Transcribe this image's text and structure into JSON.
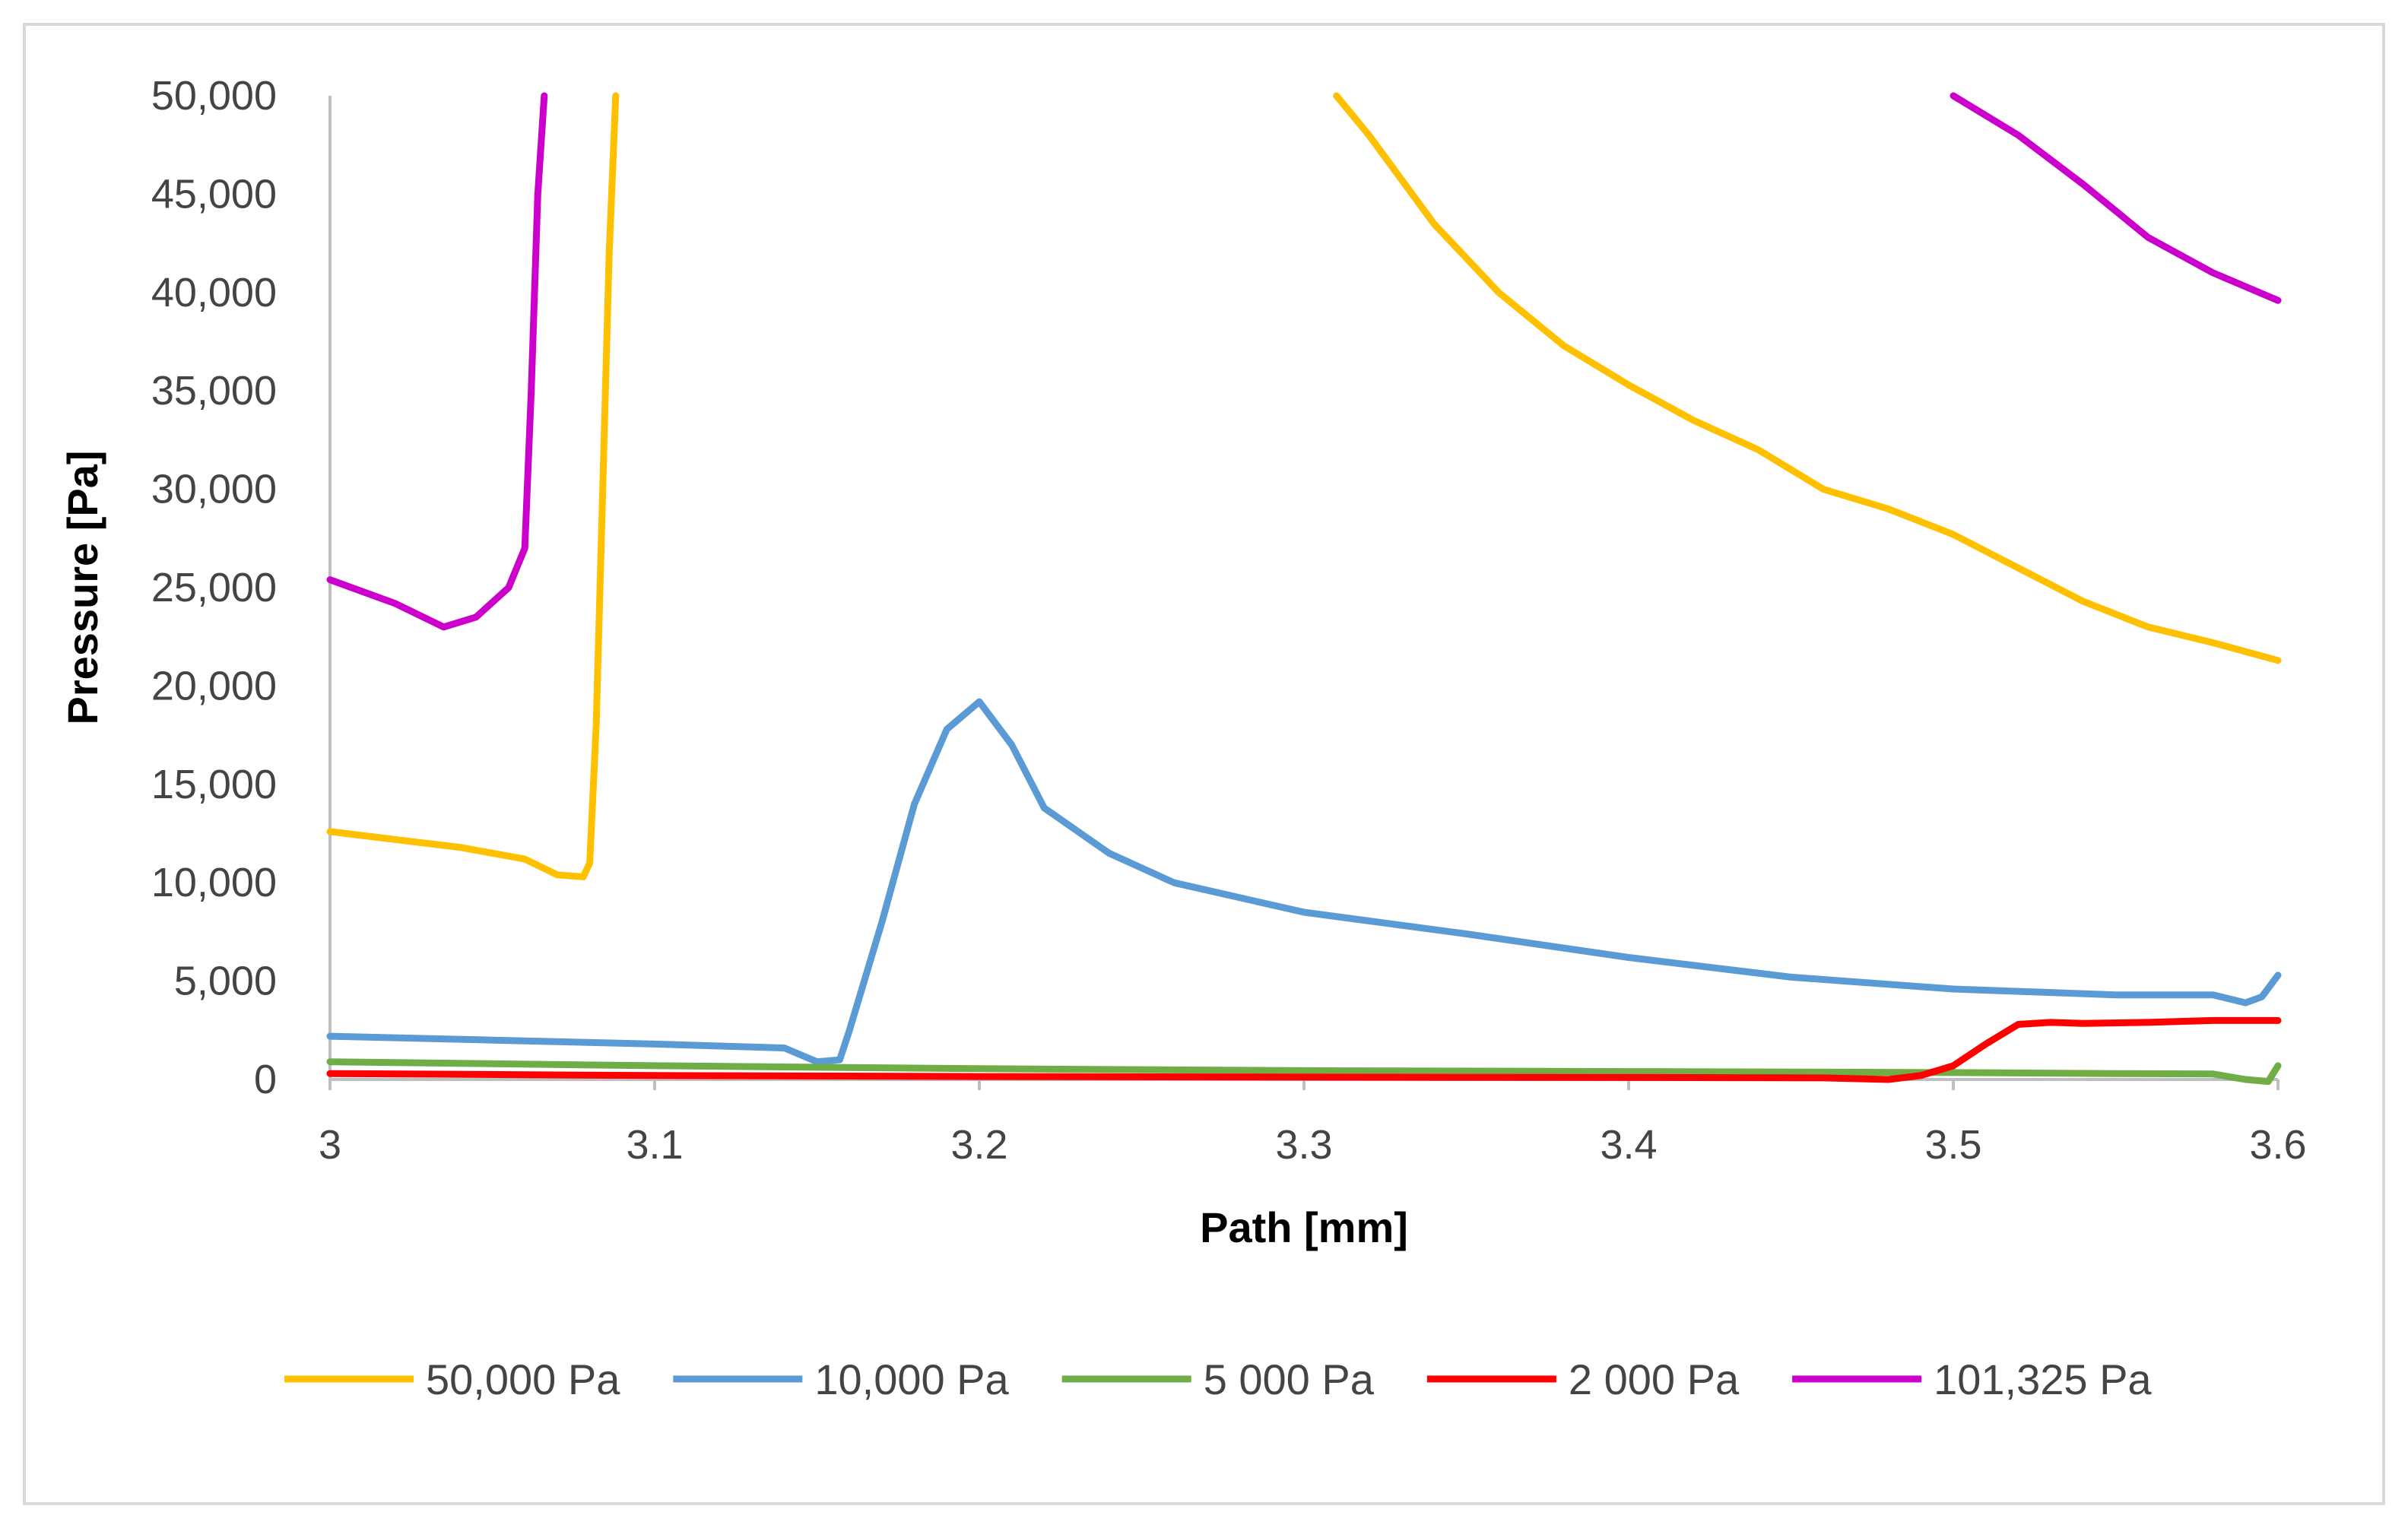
{
  "chart_data": {
    "type": "line",
    "title": "",
    "xlabel": "Path [mm]",
    "ylabel": "Pressure [Pa]",
    "xlim": [
      3,
      3.6
    ],
    "ylim": [
      0,
      50000
    ],
    "grid": false,
    "legend_position": "bottom",
    "x_ticks": [
      {
        "value": 3,
        "label": "3"
      },
      {
        "value": 3.1,
        "label": "3.1"
      },
      {
        "value": 3.2,
        "label": "3.2"
      },
      {
        "value": 3.3,
        "label": "3.3"
      },
      {
        "value": 3.4,
        "label": "3.4"
      },
      {
        "value": 3.5,
        "label": "3.5"
      },
      {
        "value": 3.6,
        "label": "3.6"
      }
    ],
    "y_ticks": [
      {
        "value": 0,
        "label": "0"
      },
      {
        "value": 5000,
        "label": "5,000"
      },
      {
        "value": 10000,
        "label": "10,000"
      },
      {
        "value": 15000,
        "label": "15,000"
      },
      {
        "value": 20000,
        "label": "20,000"
      },
      {
        "value": 25000,
        "label": "25,000"
      },
      {
        "value": 30000,
        "label": "30,000"
      },
      {
        "value": 35000,
        "label": "35,000"
      },
      {
        "value": 40000,
        "label": "40,000"
      },
      {
        "value": 45000,
        "label": "45,000"
      },
      {
        "value": 50000,
        "label": "50,000"
      }
    ],
    "series": [
      {
        "name": "50,000 Pa",
        "color": "#FFC000",
        "segments": [
          [
            [
              3.0,
              12600
            ],
            [
              3.02,
              12200
            ],
            [
              3.04,
              11800
            ],
            [
              3.06,
              11200
            ],
            [
              3.07,
              10400
            ],
            [
              3.078,
              10300
            ],
            [
              3.08,
              11000
            ],
            [
              3.082,
              18000
            ],
            [
              3.084,
              30000
            ],
            [
              3.086,
              42000
            ],
            [
              3.088,
              50000
            ]
          ],
          [
            [
              3.31,
              50000
            ],
            [
              3.32,
              48000
            ],
            [
              3.34,
              43500
            ],
            [
              3.36,
              40000
            ],
            [
              3.38,
              37300
            ],
            [
              3.4,
              35300
            ],
            [
              3.42,
              33500
            ],
            [
              3.44,
              32000
            ],
            [
              3.46,
              30000
            ],
            [
              3.48,
              29000
            ],
            [
              3.5,
              27700
            ],
            [
              3.52,
              26000
            ],
            [
              3.54,
              24300
            ],
            [
              3.56,
              23000
            ],
            [
              3.58,
              22200
            ],
            [
              3.6,
              21300
            ]
          ]
        ]
      },
      {
        "name": "10,000 Pa",
        "color": "#5B9BD5",
        "segments": [
          [
            [
              3.0,
              2200
            ],
            [
              3.05,
              2000
            ],
            [
              3.1,
              1800
            ],
            [
              3.14,
              1600
            ],
            [
              3.15,
              900
            ],
            [
              3.157,
              1000
            ],
            [
              3.16,
              2500
            ],
            [
              3.17,
              8000
            ],
            [
              3.18,
              14000
            ],
            [
              3.19,
              17800
            ],
            [
              3.2,
              19200
            ],
            [
              3.21,
              17000
            ],
            [
              3.22,
              13800
            ],
            [
              3.24,
              11500
            ],
            [
              3.26,
              10000
            ],
            [
              3.3,
              8500
            ],
            [
              3.35,
              7400
            ],
            [
              3.4,
              6200
            ],
            [
              3.45,
              5200
            ],
            [
              3.5,
              4600
            ],
            [
              3.55,
              4300
            ],
            [
              3.58,
              4300
            ],
            [
              3.59,
              3900
            ],
            [
              3.595,
              4200
            ],
            [
              3.6,
              5300
            ]
          ]
        ]
      },
      {
        "name": "5 000 Pa",
        "color": "#70AD47",
        "segments": [
          [
            [
              3.0,
              900
            ],
            [
              3.1,
              700
            ],
            [
              3.2,
              550
            ],
            [
              3.3,
              450
            ],
            [
              3.4,
              400
            ],
            [
              3.5,
              350
            ],
            [
              3.55,
              300
            ],
            [
              3.58,
              280
            ],
            [
              3.59,
              0
            ],
            [
              3.597,
              -100
            ],
            [
              3.6,
              700
            ]
          ]
        ]
      },
      {
        "name": "2 000 Pa",
        "color": "#FF0000",
        "segments": [
          [
            [
              3.0,
              300
            ],
            [
              3.1,
              200
            ],
            [
              3.2,
              150
            ],
            [
              3.3,
              120
            ],
            [
              3.4,
              100
            ],
            [
              3.46,
              80
            ],
            [
              3.48,
              0
            ],
            [
              3.49,
              200
            ],
            [
              3.5,
              700
            ],
            [
              3.51,
              1800
            ],
            [
              3.52,
              2800
            ],
            [
              3.53,
              2900
            ],
            [
              3.54,
              2850
            ],
            [
              3.56,
              2900
            ],
            [
              3.58,
              3000
            ],
            [
              3.6,
              3000
            ]
          ]
        ]
      },
      {
        "name": "101,325 Pa",
        "color": "#CC00CC",
        "segments": [
          [
            [
              3.0,
              25400
            ],
            [
              3.02,
              24200
            ],
            [
              3.035,
              23000
            ],
            [
              3.045,
              23500
            ],
            [
              3.055,
              25000
            ],
            [
              3.06,
              27000
            ],
            [
              3.062,
              35000
            ],
            [
              3.064,
              45000
            ],
            [
              3.066,
              50000
            ]
          ],
          [
            [
              3.5,
              50000
            ],
            [
              3.52,
              48000
            ],
            [
              3.54,
              45500
            ],
            [
              3.56,
              42800
            ],
            [
              3.58,
              41000
            ],
            [
              3.6,
              39600
            ]
          ]
        ]
      }
    ]
  }
}
